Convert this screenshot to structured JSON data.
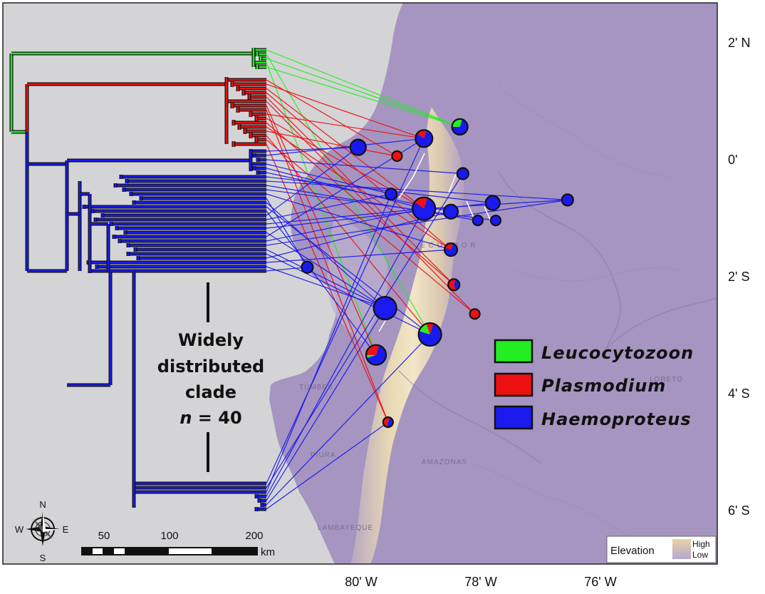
{
  "latitude_labels": [
    {
      "label": "2' N",
      "lat": 2
    },
    {
      "label": "0'",
      "lat": 0
    },
    {
      "label": "2' S",
      "lat": -2
    },
    {
      "label": "4' S",
      "lat": -4
    },
    {
      "label": "6' S",
      "lat": -6
    }
  ],
  "longitude_labels": [
    {
      "label": "80' W",
      "lon": -80
    },
    {
      "label": "78' W",
      "lon": -78
    },
    {
      "label": "76' W",
      "lon": -76
    }
  ],
  "region_labels": [
    "E C U A D O R",
    "TUMBES",
    "PIURA",
    "LAMBAYEQUE",
    "AMAZONAS",
    "LORETO"
  ],
  "legend": {
    "items": [
      {
        "label": "Leucocytozoon",
        "color": "#22ee22"
      },
      {
        "label": "Plasmodium",
        "color": "#ee1111"
      },
      {
        "label": "Haemoproteus",
        "color": "#1a1aee"
      }
    ]
  },
  "clade_annotation": {
    "line1": "Widely",
    "line2": "distributed",
    "line3": "clade",
    "n_var": "n",
    "n_rest": " = 40"
  },
  "compass": {
    "n": "N",
    "s": "S",
    "e": "E",
    "w": "W"
  },
  "scalebar": {
    "labels": [
      "50",
      "100",
      "200"
    ],
    "unit": "km"
  },
  "elevation_legend": {
    "title": "Elevation",
    "high": "High",
    "low": "Low"
  },
  "colors": {
    "leucocytozoon": "#22ee22",
    "plasmodium": "#ee1111",
    "haemoproteus": "#1a1aee",
    "ocean": "#d4d4d6",
    "lowland": "#a595c0",
    "highland": "#e6d5ac"
  },
  "sampling_sites": [
    {
      "lon": -80.05,
      "lat": 0.2,
      "shares": {
        "leucocytozoon": 0,
        "plasmodium": 0,
        "haemoproteus": 1
      }
    },
    {
      "lon": -79.4,
      "lat": 0.05,
      "shares": {
        "leucocytozoon": 0,
        "plasmodium": 1,
        "haemoproteus": 0
      }
    },
    {
      "lon": -78.95,
      "lat": 0.35,
      "shares": {
        "leucocytozoon": 0,
        "plasmodium": 0.2,
        "haemoproteus": 0.8
      }
    },
    {
      "lon": -78.35,
      "lat": 0.55,
      "shares": {
        "leucocytozoon": 0.3,
        "plasmodium": 0,
        "haemoproteus": 0.7
      }
    },
    {
      "lon": -78.3,
      "lat": -0.25,
      "shares": {
        "leucocytozoon": 0,
        "plasmodium": 0,
        "haemoproteus": 1
      }
    },
    {
      "lon": -79.5,
      "lat": -0.6,
      "shares": {
        "leucocytozoon": 0,
        "plasmodium": 0,
        "haemoproteus": 1
      }
    },
    {
      "lon": -78.95,
      "lat": -0.85,
      "shares": {
        "leucocytozoon": 0,
        "plasmodium": 0.2,
        "haemoproteus": 0.8
      }
    },
    {
      "lon": -78.5,
      "lat": -0.9,
      "shares": {
        "leucocytozoon": 0,
        "plasmodium": 0,
        "haemoproteus": 1
      }
    },
    {
      "lon": -77.8,
      "lat": -0.75,
      "shares": {
        "leucocytozoon": 0,
        "plasmodium": 0,
        "haemoproteus": 1
      }
    },
    {
      "lon": -76.55,
      "lat": -0.7,
      "shares": {
        "leucocytozoon": 0,
        "plasmodium": 0,
        "haemoproteus": 1
      }
    },
    {
      "lon": -78.05,
      "lat": -1.05,
      "shares": {
        "leucocytozoon": 0,
        "plasmodium": 0,
        "haemoproteus": 1
      }
    },
    {
      "lon": -77.75,
      "lat": -1.05,
      "shares": {
        "leucocytozoon": 0,
        "plasmodium": 0,
        "haemoproteus": 1
      }
    },
    {
      "lon": -78.5,
      "lat": -1.55,
      "shares": {
        "leucocytozoon": 0,
        "plasmodium": 0.25,
        "haemoproteus": 0.75
      }
    },
    {
      "lon": -80.9,
      "lat": -1.85,
      "shares": {
        "leucocytozoon": 0,
        "plasmodium": 0,
        "haemoproteus": 1
      }
    },
    {
      "lon": -78.45,
      "lat": -2.15,
      "shares": {
        "leucocytozoon": 0,
        "plasmodium": 0.6,
        "haemoproteus": 0.4
      }
    },
    {
      "lon": -79.6,
      "lat": -2.55,
      "shares": {
        "leucocytozoon": 0,
        "plasmodium": 0,
        "haemoproteus": 1
      }
    },
    {
      "lon": -78.1,
      "lat": -2.65,
      "shares": {
        "leucocytozoon": 0,
        "plasmodium": 1,
        "haemoproteus": 0
      }
    },
    {
      "lon": -78.85,
      "lat": -3.0,
      "shares": {
        "leucocytozoon": 0.15,
        "plasmodium": 0.1,
        "haemoproteus": 0.75
      }
    },
    {
      "lon": -79.75,
      "lat": -3.35,
      "shares": {
        "leucocytozoon": 0.05,
        "plasmodium": 0.3,
        "haemoproteus": 0.65
      }
    },
    {
      "lon": -79.55,
      "lat": -4.5,
      "shares": {
        "leucocytozoon": 0,
        "plasmodium": 0.5,
        "haemoproteus": 0.5
      }
    }
  ]
}
